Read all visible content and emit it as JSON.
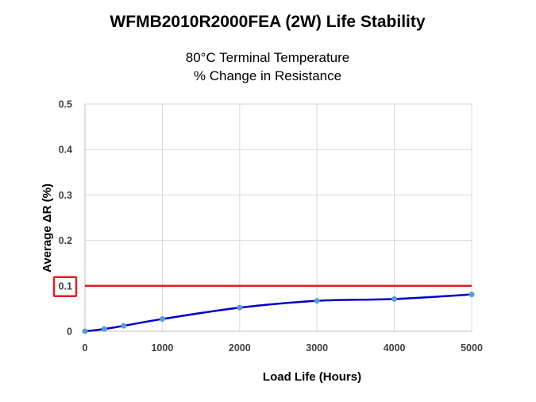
{
  "chart_data": {
    "type": "line",
    "title": "WFMB2010R2000FEA (2W) Life Stability",
    "subtitle_line1": "80°C Terminal Temperature",
    "subtitle_line2": "% Change in Resistance",
    "xlabel": "Load Life (Hours)",
    "ylabel": "Average ΔR (%)",
    "xlim": [
      0,
      5000
    ],
    "ylim": [
      0,
      0.5
    ],
    "x_ticks": [
      0,
      1000,
      2000,
      3000,
      4000,
      5000
    ],
    "x_tick_labels": [
      "0",
      "1000",
      "2000",
      "3000",
      "4000",
      "5000"
    ],
    "y_ticks": [
      0,
      0.1,
      0.2,
      0.3,
      0.4,
      0.5
    ],
    "y_tick_labels": [
      "0",
      "0.1",
      "0.2",
      "0.3",
      "0.4",
      "0.5"
    ],
    "grid": true,
    "legend": "none",
    "series": [
      {
        "x": [
          0,
          250,
          500,
          1000,
          2000,
          3000,
          4000,
          5000
        ],
        "y": [
          0,
          0.005,
          0.012,
          0.027,
          0.052,
          0.067,
          0.071,
          0.081
        ],
        "marker_color": "#5b9bd5",
        "trendline_color": "#0000c8"
      }
    ],
    "limit_line": {
      "y": 0.1,
      "color": "#e02020",
      "highlight_tick": "0.1"
    }
  }
}
